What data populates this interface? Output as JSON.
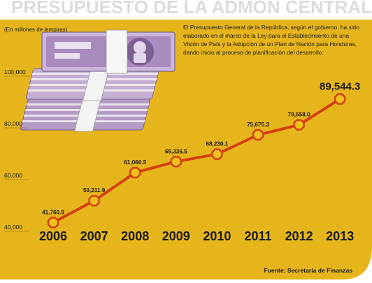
{
  "title": "PRESUPUESTO DE LA ADMON CENTRAL",
  "units_note": "(En millones de lempiras)",
  "description": "El Presupuesto General de la República, según el gobierno, ha sido elaborado en el marco de la Ley para el Establecimiento de una Visión de País y la Adopción de un Plan de Nación para Honduras, dando inicio al proceso de planificación del desarrollo.",
  "description_lines": [
    "El Presupuesto General de la República, según el gobierno, ha sido",
    "elaborado en el marco de la Ley para el Establecimiento de una",
    "Visión de País y la Adopción de un Plan de Nación para Honduras,",
    "dando inicio al proceso de planificación del desarrollo."
  ],
  "source": "Fuente: Secretaría de Finanzas",
  "colors": {
    "background": "#e6b51c",
    "line": "#d4400f",
    "marker_fill": "#f2c21c",
    "marker_stroke": "#d4400f",
    "text": "#1a1a1a",
    "title": "#dddddd"
  },
  "chart_data": {
    "type": "line",
    "title": "PRESUPUESTO DE LA ADMON CENTRAL",
    "subtitle": "(En millones de lempiras)",
    "xlabel": "",
    "ylabel": "",
    "categories": [
      "2006",
      "2007",
      "2008",
      "2009",
      "2010",
      "2011",
      "2012",
      "2013"
    ],
    "values": [
      41760.9,
      50211.9,
      61066.5,
      65336.5,
      68230.1,
      75675.3,
      79558.0,
      89544.3
    ],
    "value_labels": [
      "41,760.9",
      "50,211.9",
      "61,066.5",
      "65,336.5",
      "68,230.1",
      "75,675.3",
      "79,558.0",
      "89,544.3"
    ],
    "y_ticks": [
      40000,
      60000,
      80000,
      100000
    ],
    "y_tick_labels": [
      "40,000",
      "60,000",
      "80,000",
      "100,000"
    ],
    "ylim": [
      40000,
      100000
    ],
    "grid": false,
    "legend": "none"
  }
}
